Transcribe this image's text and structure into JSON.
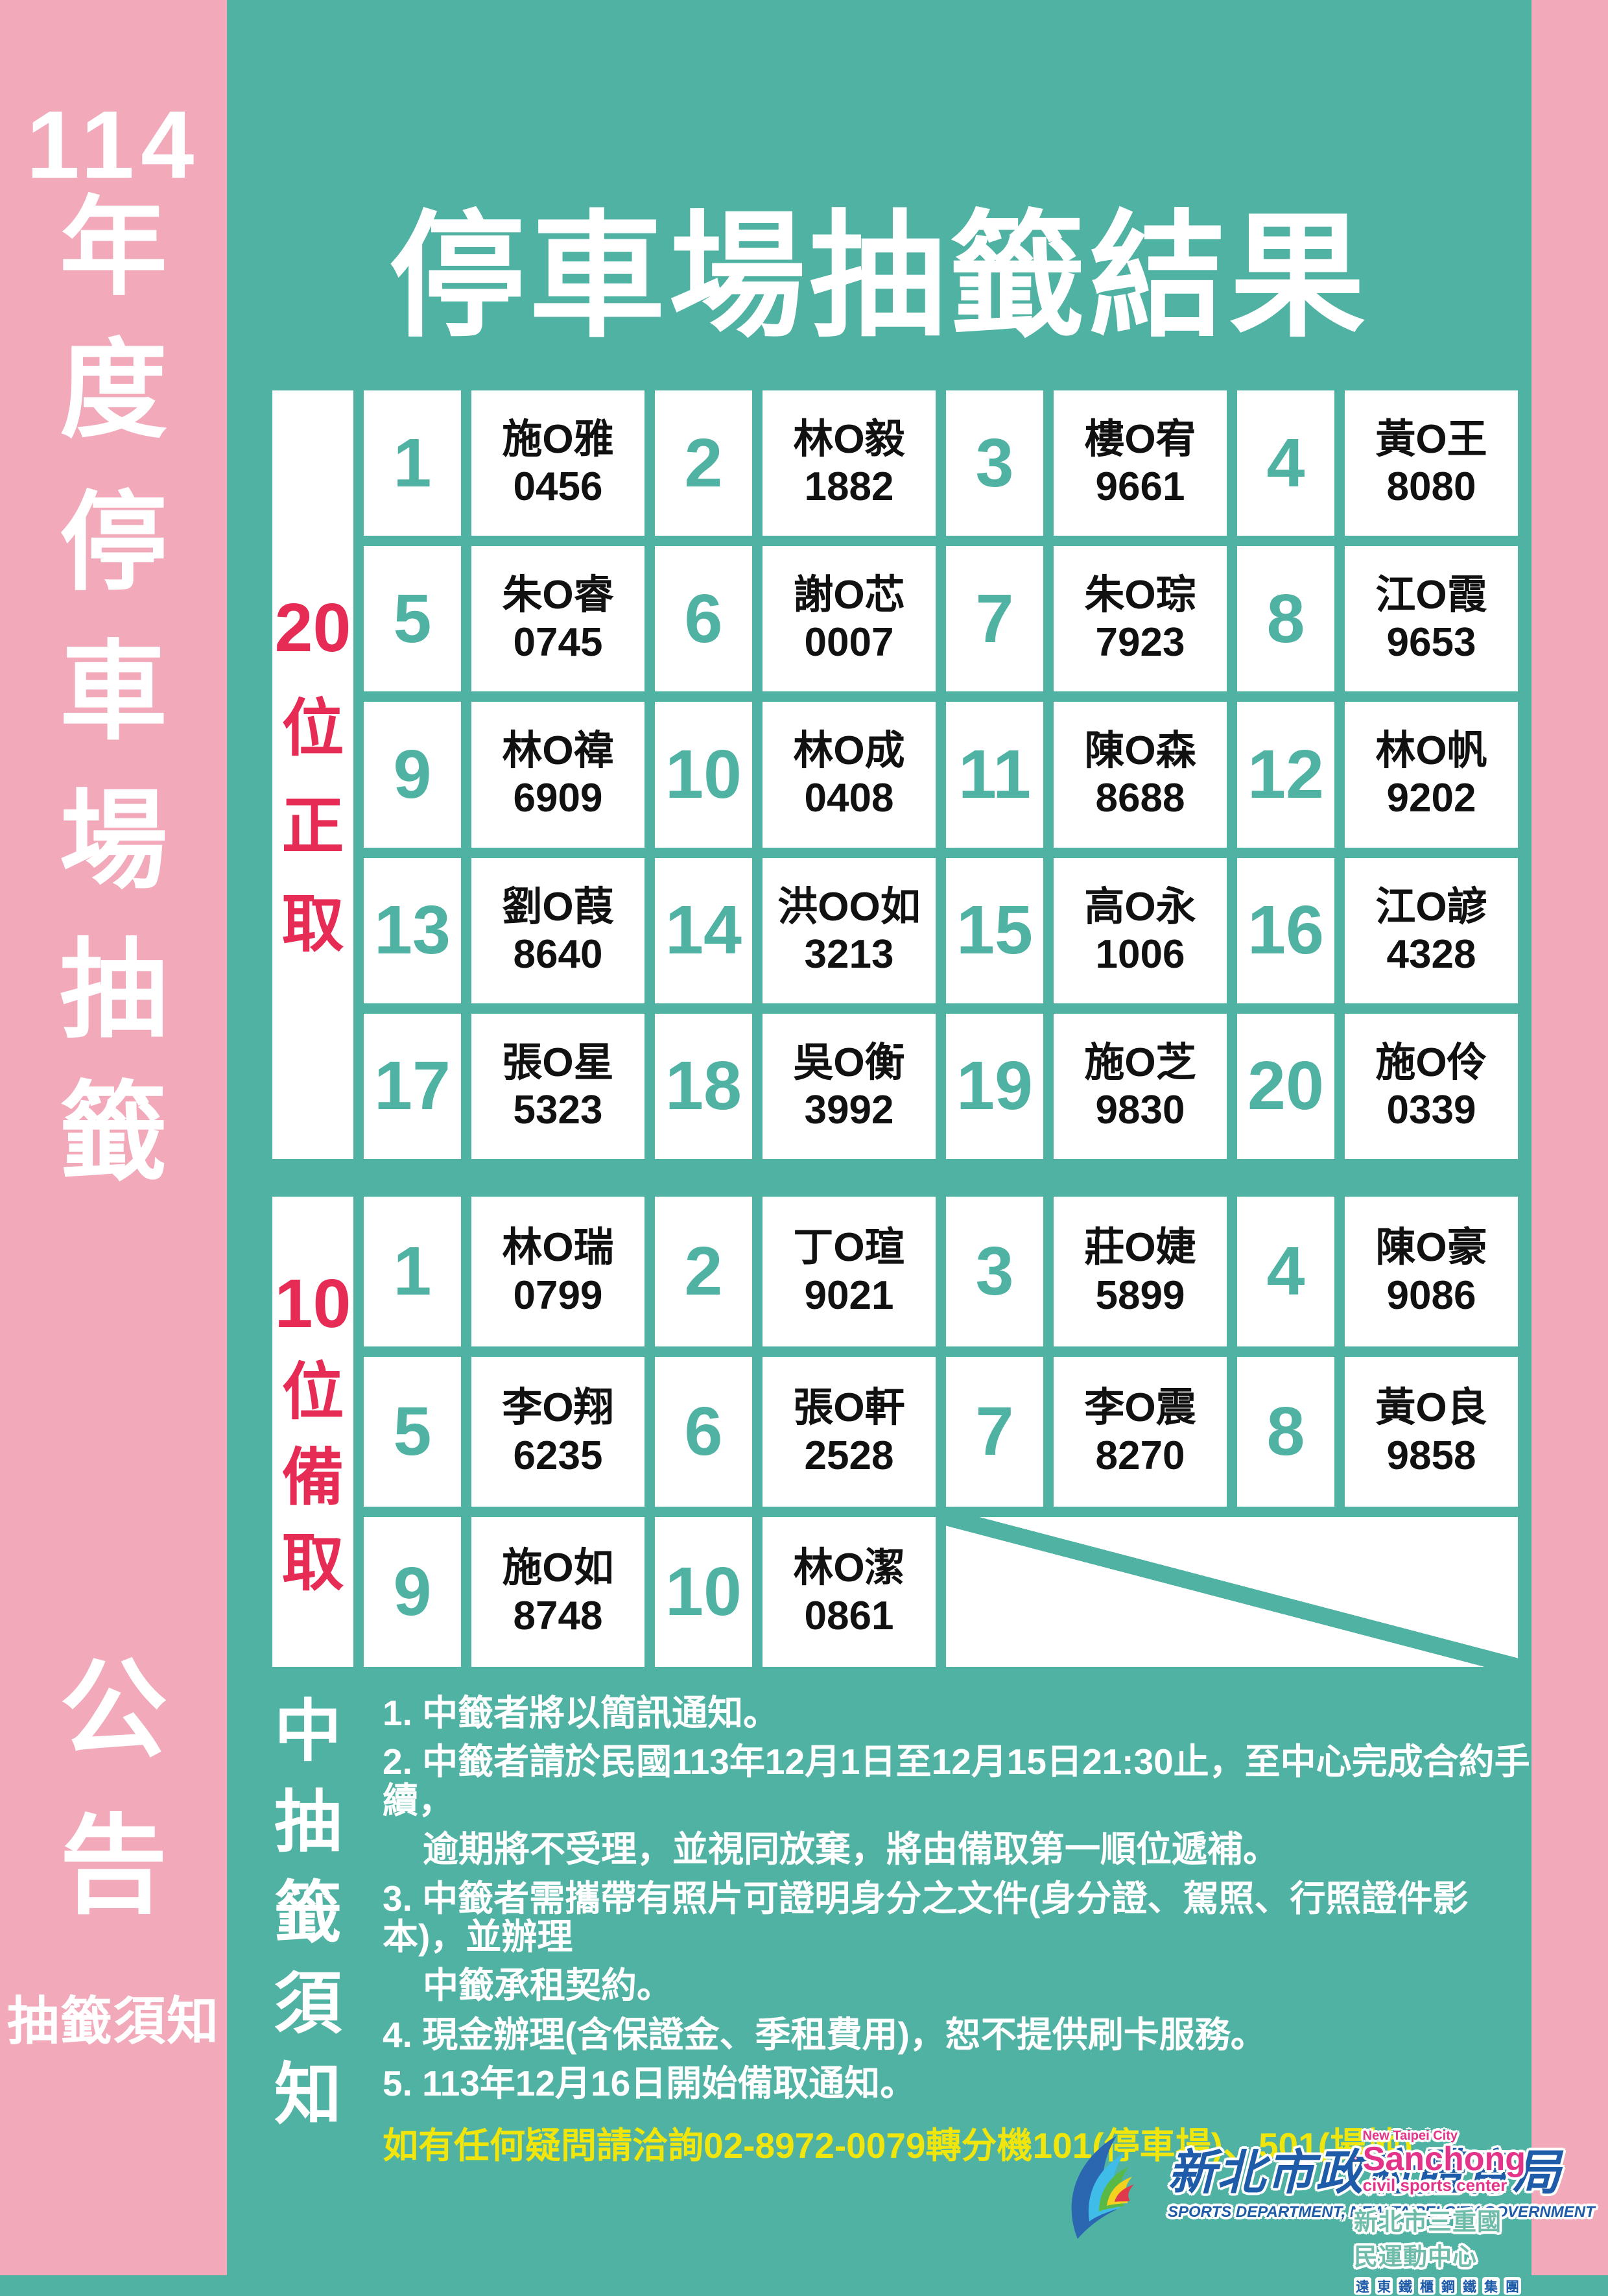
{
  "sidebar": {
    "year": "114",
    "title_chars": [
      "年",
      "度",
      "停",
      "車",
      "場",
      "抽",
      "籤",
      "公",
      "告"
    ],
    "footer_label": "抽籤須知"
  },
  "main": {
    "title": "停車場抽籤結果"
  },
  "winners_table": {
    "label_number": "20",
    "label_chars": [
      "位",
      "正",
      "取"
    ],
    "entries": [
      {
        "no": "1",
        "name": "施O雅",
        "code": "0456"
      },
      {
        "no": "2",
        "name": "林O毅",
        "code": "1882"
      },
      {
        "no": "3",
        "name": "樓O宥",
        "code": "9661"
      },
      {
        "no": "4",
        "name": "黃O王",
        "code": "8080"
      },
      {
        "no": "5",
        "name": "朱O睿",
        "code": "0745"
      },
      {
        "no": "6",
        "name": "謝O芯",
        "code": "0007"
      },
      {
        "no": "7",
        "name": "朱O琮",
        "code": "7923"
      },
      {
        "no": "8",
        "name": "江O霞",
        "code": "9653"
      },
      {
        "no": "9",
        "name": "林O禕",
        "code": "6909"
      },
      {
        "no": "10",
        "name": "林O成",
        "code": "0408"
      },
      {
        "no": "11",
        "name": "陳O森",
        "code": "8688"
      },
      {
        "no": "12",
        "name": "林O帆",
        "code": "9202"
      },
      {
        "no": "13",
        "name": "劉O葭",
        "code": "8640"
      },
      {
        "no": "14",
        "name": "洪OO如",
        "code": "3213"
      },
      {
        "no": "15",
        "name": "高O永",
        "code": "1006"
      },
      {
        "no": "16",
        "name": "江O諺",
        "code": "4328"
      },
      {
        "no": "17",
        "name": "張O星",
        "code": "5323"
      },
      {
        "no": "18",
        "name": "吳O衡",
        "code": "3992"
      },
      {
        "no": "19",
        "name": "施O芝",
        "code": "9830"
      },
      {
        "no": "20",
        "name": "施O伶",
        "code": "0339"
      }
    ]
  },
  "backup_table": {
    "label_number": "10",
    "label_chars": [
      "位",
      "備",
      "取"
    ],
    "entries": [
      {
        "no": "1",
        "name": "林O瑞",
        "code": "0799"
      },
      {
        "no": "2",
        "name": "丁O瑄",
        "code": "9021"
      },
      {
        "no": "3",
        "name": "莊O婕",
        "code": "5899"
      },
      {
        "no": "4",
        "name": "陳O豪",
        "code": "9086"
      },
      {
        "no": "5",
        "name": "李O翔",
        "code": "6235"
      },
      {
        "no": "6",
        "name": "張O軒",
        "code": "2528"
      },
      {
        "no": "7",
        "name": "李O震",
        "code": "8270"
      },
      {
        "no": "8",
        "name": "黃O良",
        "code": "9858"
      },
      {
        "no": "9",
        "name": "施O如",
        "code": "8748"
      },
      {
        "no": "10",
        "name": "林O潔",
        "code": "0861"
      }
    ]
  },
  "notes": {
    "label_chars": [
      "中",
      "抽",
      "籤",
      "須",
      "知"
    ],
    "lines": [
      {
        "text": "1. 中籤者將以簡訊通知。",
        "indent": false,
        "yellow": false
      },
      {
        "text": "2. 中籤者請於民國113年12月1日至12月15日21:30止，至中心完成合約手續，",
        "indent": false,
        "yellow": false
      },
      {
        "text": "逾期將不受理，並視同放棄，將由備取第一順位遞補。",
        "indent": true,
        "yellow": false
      },
      {
        "text": "3. 中籤者需攜帶有照片可證明身分之文件(身分證、駕照、行照證件影本)，並辦理",
        "indent": false,
        "yellow": false
      },
      {
        "text": "中籤承租契約。",
        "indent": true,
        "yellow": false
      },
      {
        "text": "4. 現金辦理(含保證金、季租費用)，恕不提供刷卡服務。",
        "indent": false,
        "yellow": false
      },
      {
        "text": "5. 113年12月16日開始備取通知。",
        "indent": false,
        "yellow": false
      },
      {
        "text": "如有任何疑問請洽詢02-8972-0079轉分機101(停車場)、501(場地)",
        "indent": false,
        "yellow": true
      }
    ]
  },
  "footer": {
    "sports_dept": {
      "title": "新北市政府體育局",
      "subtitle": "SPORTS DEPARTMENT, NEW TAIPEI CITY GOVERNMENT"
    },
    "sanchong": {
      "line1": "New Taipei City",
      "line2": "Sanchong",
      "line3": "civil sports center",
      "cjk": "新北市三重國民運動中心",
      "group_chars": [
        "遠",
        "東",
        "鐵",
        "櫃",
        "鋼",
        "鐵",
        "集",
        "團"
      ]
    }
  },
  "colors": {
    "teal": "#4FB2A3",
    "pink": "#F2AABB",
    "red": "#E62B54",
    "yellow": "#F0E50C",
    "logo_blue": "#1E5BA8",
    "sanchong_pink": "#E4348A",
    "sanchong_teal": "#6FBCAA",
    "text_black": "#111111"
  }
}
